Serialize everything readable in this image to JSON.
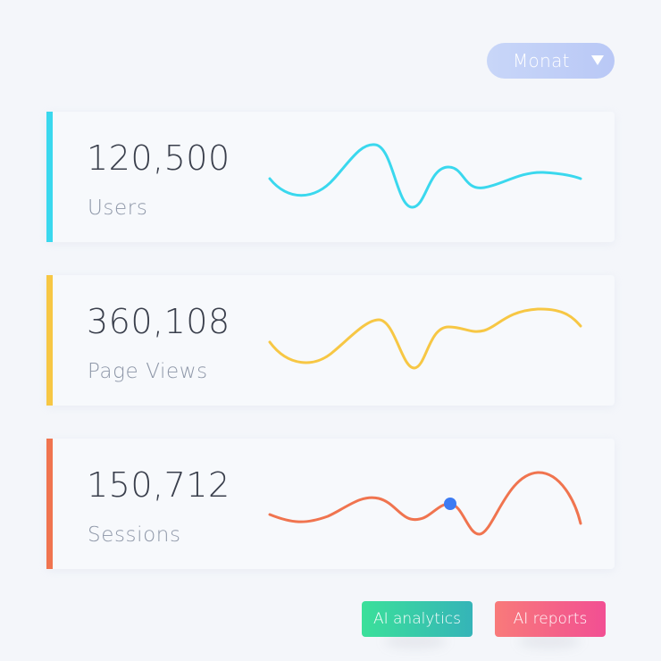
{
  "period_select": {
    "value": "Monat",
    "caret_icon": "caret-down-icon"
  },
  "stats": [
    {
      "value": "120,500",
      "label": "Users",
      "color": "#3ad8ee"
    },
    {
      "value": "360,108",
      "label": "Page Views",
      "color": "#f7c744"
    },
    {
      "value": "150,712",
      "label": "Sessions",
      "color": "#f0744f",
      "marker_color": "#3d7bf2"
    }
  ],
  "actions": {
    "analytics_label": "AI analytics",
    "reports_label": "AI reports",
    "analytics_gradient": [
      "#3be09a",
      "#35b4b8"
    ],
    "reports_gradient": [
      "#f87a7a",
      "#f24f93"
    ]
  }
}
